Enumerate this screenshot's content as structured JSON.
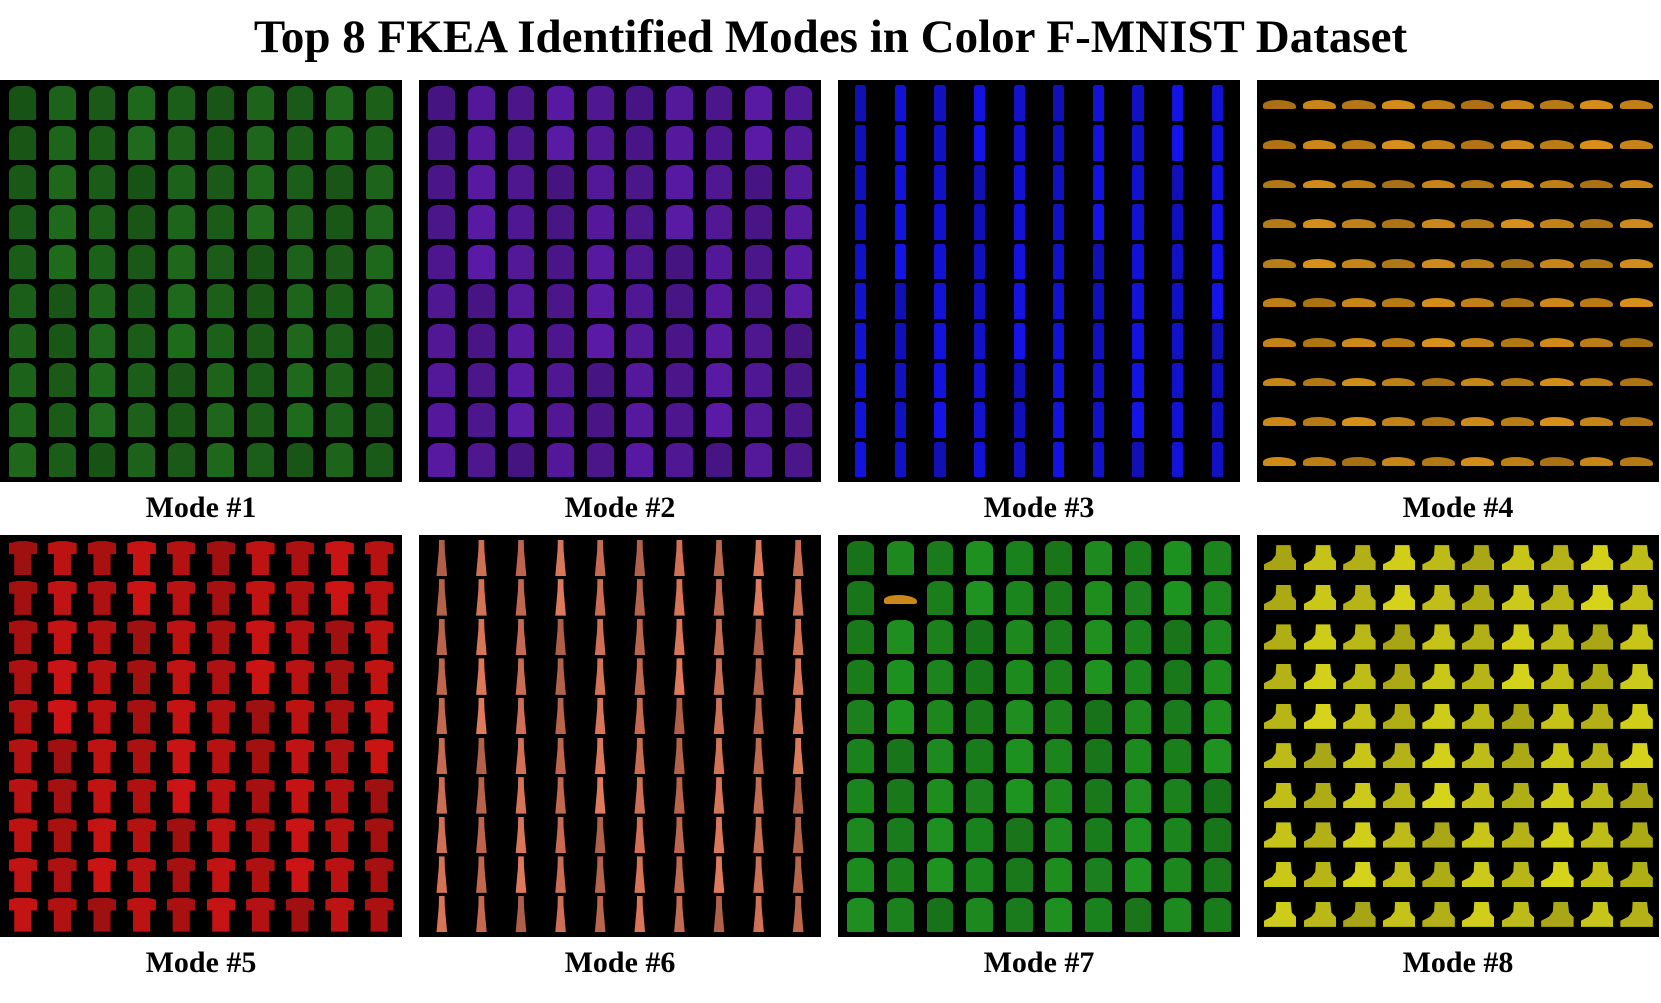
{
  "title": "Top 8 FKEA Identified Modes in Color F-MNIST Dataset",
  "grid": {
    "rows": 10,
    "cols": 10
  },
  "modes": [
    {
      "label": "Mode #1",
      "shape": "shirt",
      "color": "#1f6b1c"
    },
    {
      "label": "Mode #2",
      "shape": "shirt",
      "color": "#5a1aa6"
    },
    {
      "label": "Mode #3",
      "shape": "pants",
      "color": "#1414e6"
    },
    {
      "label": "Mode #4",
      "shape": "sneaker",
      "color": "#d8901a"
    },
    {
      "label": "Mode #5",
      "shape": "tshirt",
      "color": "#cc1414"
    },
    {
      "label": "Mode #6",
      "shape": "dress",
      "color": "#e07a5c"
    },
    {
      "label": "Mode #7",
      "shape": "shirt",
      "color": "#1e9420",
      "outlier": {
        "row": 1,
        "col": 1,
        "shape": "sneaker",
        "color": "#d8901a"
      }
    },
    {
      "label": "Mode #8",
      "shape": "boot",
      "color": "#d6d41a"
    }
  ]
}
